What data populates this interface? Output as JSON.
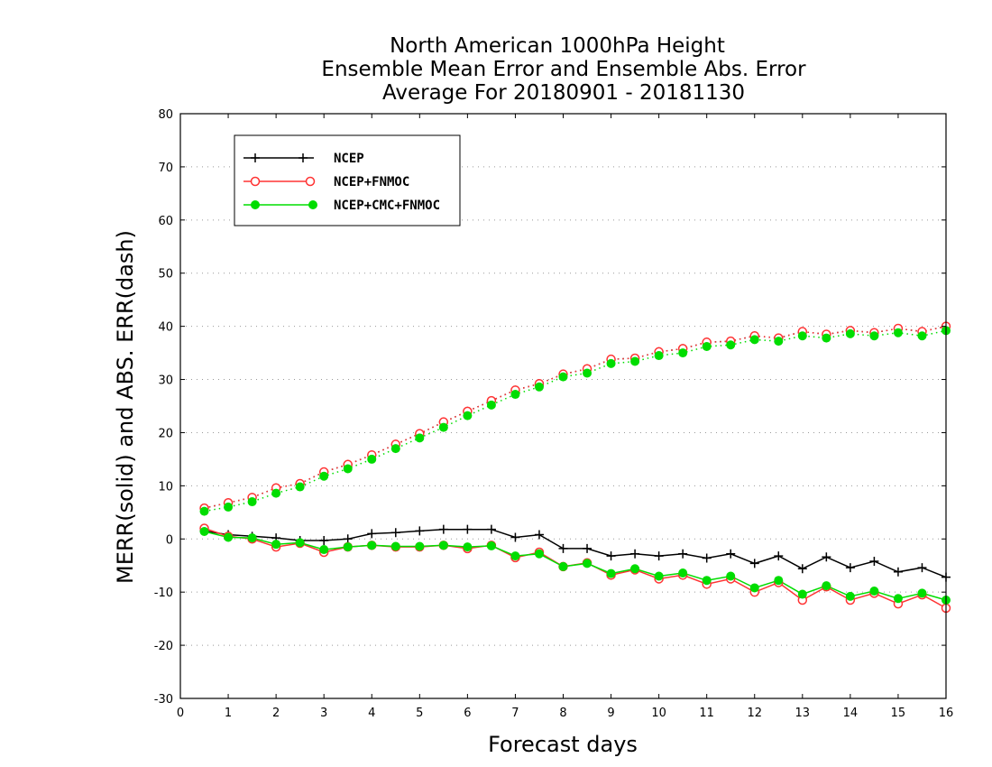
{
  "chart_data": {
    "type": "line",
    "title": [
      "North American 1000hPa Height",
      "Ensemble Mean Error and Ensemble Abs. Error",
      "Average For 20180901 - 20181130"
    ],
    "xlabel": "Forecast days",
    "ylabel": "MERR(solid) and ABS. ERR(dash)",
    "xlim": [
      0,
      16
    ],
    "ylim": [
      -30,
      80
    ],
    "xticks": [
      0,
      1,
      2,
      3,
      4,
      5,
      6,
      7,
      8,
      9,
      10,
      11,
      12,
      13,
      14,
      15,
      16
    ],
    "yticks": [
      -30,
      -20,
      -10,
      0,
      10,
      20,
      30,
      40,
      50,
      60,
      70,
      80
    ],
    "grid": "horizontal dotted",
    "legend_position": "top-left",
    "x": [
      0.5,
      1,
      1.5,
      2,
      2.5,
      3,
      3.5,
      4,
      4.5,
      5,
      5.5,
      6,
      6.5,
      7,
      7.5,
      8,
      8.5,
      9,
      9.5,
      10,
      10.5,
      11,
      11.5,
      12,
      12.5,
      13,
      13.5,
      14,
      14.5,
      15,
      15.5,
      16
    ],
    "series": [
      {
        "name": "NCEP",
        "color": "#000000",
        "marker": "plus",
        "merr": [
          1.5,
          0.8,
          0.5,
          0.2,
          -0.3,
          -0.3,
          0.0,
          1.0,
          1.2,
          1.5,
          1.8,
          1.8,
          1.8,
          0.3,
          0.8,
          -1.8,
          -1.8,
          -3.2,
          -2.8,
          -3.2,
          -2.8,
          -3.6,
          -2.8,
          -4.6,
          -3.2,
          -5.6,
          -3.4,
          -5.4,
          -4.2,
          -6.2,
          -5.4,
          -7.2
        ],
        "abs_err": [
          5.8,
          6.8,
          7.8,
          9.6,
          10.4,
          12.6,
          14.0,
          15.8,
          17.8,
          19.8,
          22.0,
          24.0,
          26.0,
          28.0,
          29.2,
          31.0,
          32.0,
          33.8,
          34.0,
          35.2,
          35.8,
          37.0,
          37.2,
          38.2,
          37.8,
          39.0,
          38.5,
          39.2,
          38.8,
          39.6,
          39.0,
          40.0
        ]
      },
      {
        "name": "NCEP+FNMOC",
        "color": "#ff3333",
        "marker": "open-circle",
        "merr": [
          2.0,
          0.5,
          0.0,
          -1.5,
          -0.8,
          -2.5,
          -1.5,
          -1.2,
          -1.5,
          -1.5,
          -1.2,
          -1.8,
          -1.2,
          -3.5,
          -2.5,
          -5.2,
          -4.5,
          -6.8,
          -5.8,
          -7.5,
          -6.8,
          -8.5,
          -7.5,
          -10.0,
          -8.2,
          -11.5,
          -9.0,
          -11.5,
          -10.2,
          -12.2,
          -10.5,
          -13.0
        ],
        "abs_err": [
          5.8,
          6.8,
          7.8,
          9.6,
          10.4,
          12.6,
          14.0,
          15.8,
          17.8,
          19.8,
          22.0,
          24.0,
          26.0,
          28.0,
          29.2,
          31.0,
          32.0,
          33.8,
          34.0,
          35.2,
          35.8,
          37.0,
          37.2,
          38.2,
          37.8,
          39.0,
          38.5,
          39.2,
          38.8,
          39.6,
          39.0,
          40.0
        ]
      },
      {
        "name": "NCEP+CMC+FNMOC",
        "color": "#00dd00",
        "marker": "filled-circle",
        "merr": [
          1.4,
          0.3,
          0.2,
          -1.0,
          -0.7,
          -2.0,
          -1.5,
          -1.2,
          -1.4,
          -1.4,
          -1.2,
          -1.5,
          -1.3,
          -3.2,
          -2.8,
          -5.2,
          -4.6,
          -6.5,
          -5.6,
          -7.0,
          -6.4,
          -7.8,
          -7.0,
          -9.2,
          -7.8,
          -10.4,
          -8.8,
          -10.8,
          -9.8,
          -11.2,
          -10.2,
          -11.5
        ],
        "abs_err": [
          5.2,
          6.0,
          7.0,
          8.6,
          9.8,
          11.8,
          13.2,
          15.0,
          17.0,
          19.0,
          21.0,
          23.2,
          25.2,
          27.2,
          28.6,
          30.5,
          31.2,
          33.0,
          33.4,
          34.5,
          35.0,
          36.2,
          36.5,
          37.5,
          37.2,
          38.2,
          37.8,
          38.6,
          38.2,
          38.8,
          38.2,
          39.2
        ]
      }
    ]
  }
}
